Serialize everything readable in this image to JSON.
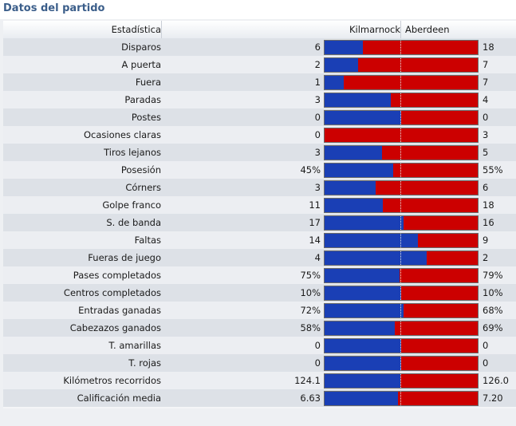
{
  "title": "Datos del partido",
  "header": {
    "stat": "Estadística",
    "home": "Kilmarnock",
    "away": "Aberdeen"
  },
  "colors": {
    "home": "#1a3fb5",
    "away": "#cc0000"
  },
  "rows": [
    {
      "label": "Disparos",
      "home": "6",
      "away": "18",
      "home_share": 0.25
    },
    {
      "label": "A puerta",
      "home": "2",
      "away": "7",
      "home_share": 0.22
    },
    {
      "label": "Fuera",
      "home": "1",
      "away": "7",
      "home_share": 0.125
    },
    {
      "label": "Paradas",
      "home": "3",
      "away": "4",
      "home_share": 0.43
    },
    {
      "label": "Postes",
      "home": "0",
      "away": "0",
      "home_share": 0.5
    },
    {
      "label": "Ocasiones claras",
      "home": "0",
      "away": "3",
      "home_share": 0.0
    },
    {
      "label": "Tiros lejanos",
      "home": "3",
      "away": "5",
      "home_share": 0.375
    },
    {
      "label": "Posesión",
      "home": "45%",
      "away": "55%",
      "home_share": 0.45
    },
    {
      "label": "Córners",
      "home": "3",
      "away": "6",
      "home_share": 0.333
    },
    {
      "label": "Golpe franco",
      "home": "11",
      "away": "18",
      "home_share": 0.379
    },
    {
      "label": "S. de banda",
      "home": "17",
      "away": "16",
      "home_share": 0.515
    },
    {
      "label": "Faltas",
      "home": "14",
      "away": "9",
      "home_share": 0.609
    },
    {
      "label": "Fueras de juego",
      "home": "4",
      "away": "2",
      "home_share": 0.667
    },
    {
      "label": "Pases completados",
      "home": "75%",
      "away": "79%",
      "home_share": 0.487
    },
    {
      "label": "Centros completados",
      "home": "10%",
      "away": "10%",
      "home_share": 0.5
    },
    {
      "label": "Entradas ganadas",
      "home": "72%",
      "away": "68%",
      "home_share": 0.514
    },
    {
      "label": "Cabezazos ganados",
      "home": "58%",
      "away": "69%",
      "home_share": 0.457
    },
    {
      "label": "T. amarillas",
      "home": "0",
      "away": "0",
      "home_share": 0.5
    },
    {
      "label": "T. rojas",
      "home": "0",
      "away": "0",
      "home_share": 0.5
    },
    {
      "label": "Kilómetros recorridos",
      "home": "124.1",
      "away": "126.0",
      "home_share": 0.496
    },
    {
      "label": "Calificación media",
      "home": "6.63",
      "away": "7.20",
      "home_share": 0.479
    }
  ]
}
